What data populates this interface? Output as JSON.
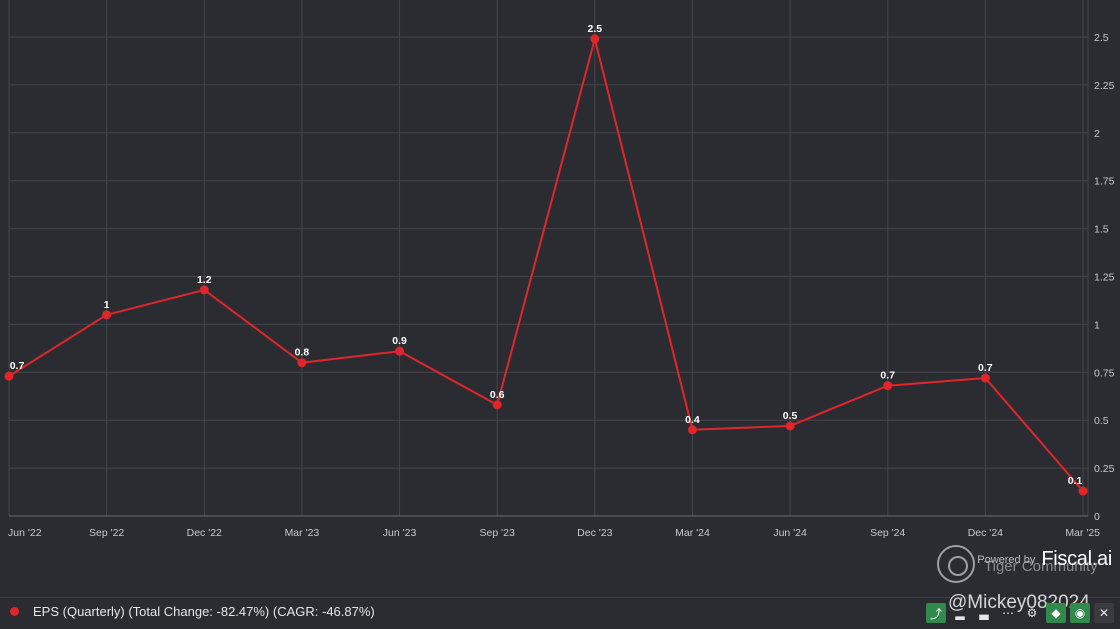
{
  "chart_data": {
    "type": "line",
    "categories": [
      "Jun '22",
      "Sep '22",
      "Dec '22",
      "Mar '23",
      "Jun '23",
      "Sep '23",
      "Dec '23",
      "Mar '24",
      "Jun '24",
      "Sep '24",
      "Dec '24",
      "Mar '25"
    ],
    "series": [
      {
        "values": [
          0.73,
          1.05,
          1.18,
          0.8,
          0.86,
          0.58,
          2.49,
          0.45,
          0.47,
          0.68,
          0.72,
          0.13
        ],
        "labels": [
          "0.7",
          "1",
          "1.2",
          "0.8",
          "0.9",
          "0.6",
          "2.5",
          "0.4",
          "0.5",
          "0.7",
          "0.7",
          "0.1"
        ],
        "color": "#e0262b"
      }
    ],
    "yticks": [
      "0",
      "0.25",
      "0.5",
      "0.75",
      "1",
      "1.25",
      "1.5",
      "1.75",
      "2",
      "2.25",
      "2.5"
    ],
    "ylim": [
      0,
      2.6
    ],
    "y_axis_position": "right",
    "grid": true
  },
  "legend": {
    "text": "EPS (Quarterly) (Total Change: -82.47%) (CAGR: -46.87%)",
    "color": "#e0262b"
  },
  "brand": {
    "powered_by": "Powered by",
    "name": "Fiscal.ai"
  },
  "watermark": {
    "community": "Tiger Community",
    "user": "@Mickey082024"
  },
  "toolbar": {
    "items": [
      {
        "icon": "trend-chart-icon",
        "glyph": "⤴"
      },
      {
        "icon": "bar-chart-icon",
        "glyph": "▂"
      },
      {
        "icon": "bar-chart-alt-icon",
        "glyph": "▃"
      },
      {
        "icon": "more-icon",
        "glyph": "⋯"
      },
      {
        "icon": "gear-icon",
        "glyph": "⚙"
      },
      {
        "icon": "tag-icon",
        "glyph": "◆"
      },
      {
        "icon": "eye-icon",
        "glyph": "◉"
      },
      {
        "icon": "close-icon",
        "glyph": "✕"
      }
    ]
  }
}
